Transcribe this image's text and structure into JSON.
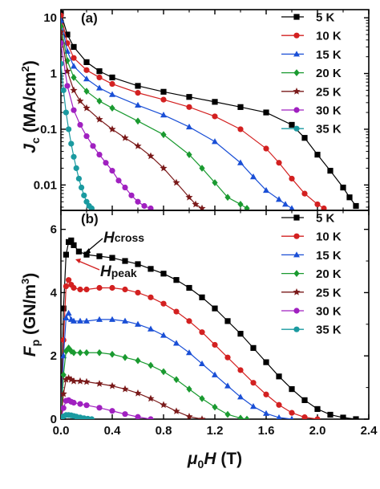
{
  "chart_data": [
    {
      "panel": "(a)",
      "type": "line",
      "y_scale": "log",
      "xlim": [
        0,
        2.4
      ],
      "ylim": [
        0.0035,
        14
      ],
      "y_ticks": [
        0.01,
        0.1,
        1,
        10
      ],
      "y_tick_labels": [
        "0.01",
        "0.1",
        "1",
        "10"
      ],
      "ylabel": {
        "main": "J",
        "sub": "c",
        "rest": " (MA/cm",
        "sup": "2",
        "close": ")"
      },
      "legend_position": "right",
      "series": [
        {
          "name": "5 K",
          "color": "#000000",
          "marker": "square",
          "x": [
            0.0,
            0.05,
            0.1,
            0.2,
            0.3,
            0.4,
            0.6,
            0.8,
            1.0,
            1.2,
            1.4,
            1.6,
            1.8,
            1.9,
            2.0,
            2.1,
            2.2,
            2.25,
            2.3
          ],
          "y": [
            12,
            5.0,
            3.0,
            1.6,
            1.1,
            0.85,
            0.6,
            0.47,
            0.38,
            0.31,
            0.25,
            0.2,
            0.12,
            0.07,
            0.035,
            0.018,
            0.009,
            0.006,
            0.0042
          ]
        },
        {
          "name": "10 K",
          "color": "#d32020",
          "marker": "circle",
          "x": [
            0.0,
            0.05,
            0.1,
            0.2,
            0.3,
            0.4,
            0.6,
            0.8,
            1.0,
            1.2,
            1.4,
            1.6,
            1.7,
            1.8,
            1.9,
            2.0,
            2.05
          ],
          "y": [
            11,
            3.5,
            1.9,
            1.15,
            0.85,
            0.65,
            0.45,
            0.34,
            0.25,
            0.17,
            0.1,
            0.045,
            0.025,
            0.013,
            0.007,
            0.0045,
            0.0038
          ]
        },
        {
          "name": "15 K",
          "color": "#1a4fd6",
          "marker": "triangle",
          "x": [
            0.0,
            0.05,
            0.1,
            0.2,
            0.3,
            0.4,
            0.6,
            0.8,
            1.0,
            1.2,
            1.4,
            1.5,
            1.6,
            1.7,
            1.75,
            1.8
          ],
          "y": [
            9,
            2.5,
            1.35,
            0.8,
            0.55,
            0.42,
            0.27,
            0.18,
            0.11,
            0.06,
            0.025,
            0.014,
            0.008,
            0.0055,
            0.0045,
            0.0038
          ]
        },
        {
          "name": "20 K",
          "color": "#1a9a30",
          "marker": "diamond",
          "x": [
            0.0,
            0.05,
            0.1,
            0.2,
            0.3,
            0.4,
            0.6,
            0.8,
            1.0,
            1.1,
            1.2,
            1.3,
            1.4,
            1.45
          ],
          "y": [
            7,
            1.7,
            0.85,
            0.48,
            0.32,
            0.24,
            0.14,
            0.08,
            0.035,
            0.02,
            0.011,
            0.006,
            0.0045,
            0.0038
          ]
        },
        {
          "name": "25 K",
          "color": "#7a1a1a",
          "marker": "star",
          "x": [
            0.0,
            0.05,
            0.1,
            0.15,
            0.2,
            0.3,
            0.4,
            0.5,
            0.6,
            0.7,
            0.8,
            0.9,
            1.0,
            1.05,
            1.1
          ],
          "y": [
            5.5,
            1.1,
            0.5,
            0.32,
            0.24,
            0.15,
            0.1,
            0.07,
            0.05,
            0.033,
            0.02,
            0.011,
            0.006,
            0.0045,
            0.0038
          ]
        },
        {
          "name": "30 K",
          "color": "#a020c0",
          "marker": "circle",
          "x": [
            0.0,
            0.05,
            0.1,
            0.15,
            0.2,
            0.25,
            0.3,
            0.35,
            0.4,
            0.45,
            0.5,
            0.55,
            0.6,
            0.65,
            0.7
          ],
          "y": [
            3.5,
            0.6,
            0.22,
            0.12,
            0.075,
            0.05,
            0.035,
            0.025,
            0.018,
            0.012,
            0.009,
            0.0065,
            0.005,
            0.0042,
            0.0038
          ]
        },
        {
          "name": "35 K",
          "color": "#1a9aa0",
          "marker": "circle",
          "x": [
            0.0,
            0.02,
            0.04,
            0.06,
            0.08,
            0.1,
            0.12,
            0.14,
            0.16,
            0.18,
            0.2,
            0.22,
            0.24
          ],
          "y": [
            1.5,
            0.5,
            0.2,
            0.1,
            0.055,
            0.032,
            0.02,
            0.013,
            0.009,
            0.0065,
            0.005,
            0.0042,
            0.0038
          ]
        }
      ]
    },
    {
      "panel": "(b)",
      "type": "line",
      "xlim": [
        0,
        2.4
      ],
      "ylim": [
        0,
        6.6
      ],
      "x_ticks": [
        0.0,
        0.4,
        0.8,
        1.2,
        1.6,
        2.0,
        2.4
      ],
      "x_tick_labels": [
        "0.0",
        "0.4",
        "0.8",
        "1.2",
        "1.6",
        "2.0",
        "2.4"
      ],
      "y_ticks": [
        0,
        2,
        4,
        6
      ],
      "y_tick_labels": [
        "0",
        "2",
        "4",
        "6"
      ],
      "ylabel": {
        "main": "F",
        "sub": "p",
        "rest": " (GN/m",
        "sup": "3",
        "close": ")"
      },
      "xlabel": {
        "pre": "μ",
        "sub": "0",
        "main": "H",
        "rest": " (T)"
      },
      "legend_position": "right",
      "annotations": [
        {
          "main": "H",
          "sub": "cross"
        },
        {
          "main": "H",
          "sub": "peak"
        }
      ],
      "series": [
        {
          "name": "5 K",
          "color": "#000000",
          "marker": "square",
          "x": [
            0.0,
            0.02,
            0.04,
            0.06,
            0.08,
            0.1,
            0.14,
            0.2,
            0.3,
            0.4,
            0.5,
            0.6,
            0.7,
            0.8,
            0.9,
            1.0,
            1.1,
            1.2,
            1.3,
            1.4,
            1.5,
            1.6,
            1.7,
            1.8,
            1.9,
            2.0,
            2.1,
            2.2,
            2.3
          ],
          "y": [
            0.0,
            3.5,
            5.2,
            5.6,
            5.65,
            5.5,
            5.3,
            5.2,
            5.15,
            5.1,
            5.0,
            4.9,
            4.75,
            4.6,
            4.4,
            4.15,
            3.85,
            3.5,
            3.1,
            2.7,
            2.25,
            1.8,
            1.35,
            0.95,
            0.6,
            0.32,
            0.14,
            0.05,
            0.0
          ]
        },
        {
          "name": "10 K",
          "color": "#d32020",
          "marker": "circle",
          "x": [
            0.0,
            0.02,
            0.04,
            0.06,
            0.08,
            0.1,
            0.15,
            0.2,
            0.3,
            0.4,
            0.5,
            0.6,
            0.7,
            0.8,
            0.9,
            1.0,
            1.1,
            1.2,
            1.3,
            1.4,
            1.5,
            1.6,
            1.7,
            1.8,
            1.9,
            2.0
          ],
          "y": [
            0.0,
            2.5,
            4.2,
            4.4,
            4.25,
            4.15,
            4.1,
            4.1,
            4.15,
            4.15,
            4.1,
            4.0,
            3.85,
            3.65,
            3.4,
            3.1,
            2.75,
            2.35,
            1.95,
            1.55,
            1.15,
            0.78,
            0.45,
            0.2,
            0.06,
            0.0
          ]
        },
        {
          "name": "15 K",
          "color": "#1a4fd6",
          "marker": "triangle",
          "x": [
            0.0,
            0.02,
            0.04,
            0.06,
            0.08,
            0.1,
            0.15,
            0.2,
            0.3,
            0.4,
            0.5,
            0.6,
            0.7,
            0.8,
            0.9,
            1.0,
            1.1,
            1.2,
            1.3,
            1.4,
            1.5,
            1.6,
            1.7,
            1.8
          ],
          "y": [
            0.0,
            2.0,
            3.2,
            3.35,
            3.15,
            3.1,
            3.1,
            3.1,
            3.15,
            3.15,
            3.1,
            3.0,
            2.85,
            2.65,
            2.4,
            2.1,
            1.75,
            1.4,
            1.05,
            0.7,
            0.4,
            0.18,
            0.05,
            0.0
          ]
        },
        {
          "name": "20 K",
          "color": "#1a9a30",
          "marker": "diamond",
          "x": [
            0.0,
            0.02,
            0.04,
            0.06,
            0.08,
            0.1,
            0.15,
            0.2,
            0.3,
            0.4,
            0.5,
            0.6,
            0.7,
            0.8,
            0.9,
            1.0,
            1.1,
            1.2,
            1.3,
            1.4,
            1.45
          ],
          "y": [
            0.0,
            1.4,
            2.15,
            2.25,
            2.15,
            2.1,
            2.1,
            2.1,
            2.1,
            2.05,
            1.95,
            1.85,
            1.7,
            1.5,
            1.25,
            0.95,
            0.65,
            0.38,
            0.15,
            0.03,
            0.0
          ]
        },
        {
          "name": "25 K",
          "color": "#7a1a1a",
          "marker": "star",
          "x": [
            0.0,
            0.02,
            0.04,
            0.06,
            0.08,
            0.1,
            0.15,
            0.2,
            0.3,
            0.4,
            0.5,
            0.6,
            0.7,
            0.8,
            0.9,
            1.0,
            1.1
          ],
          "y": [
            0.0,
            0.8,
            1.25,
            1.3,
            1.25,
            1.2,
            1.2,
            1.18,
            1.12,
            1.05,
            0.95,
            0.82,
            0.65,
            0.45,
            0.25,
            0.08,
            0.0
          ]
        },
        {
          "name": "30 K",
          "color": "#a020c0",
          "marker": "circle",
          "x": [
            0.0,
            0.02,
            0.04,
            0.06,
            0.08,
            0.1,
            0.15,
            0.2,
            0.3,
            0.4,
            0.5,
            0.6,
            0.7
          ],
          "y": [
            0.0,
            0.35,
            0.58,
            0.6,
            0.55,
            0.52,
            0.48,
            0.44,
            0.36,
            0.26,
            0.16,
            0.07,
            0.0
          ]
        },
        {
          "name": "35 K",
          "color": "#1a9aa0",
          "marker": "circle",
          "x": [
            0.0,
            0.02,
            0.04,
            0.06,
            0.08,
            0.1,
            0.12,
            0.15,
            0.18,
            0.21,
            0.24
          ],
          "y": [
            0.0,
            0.09,
            0.13,
            0.13,
            0.12,
            0.1,
            0.08,
            0.055,
            0.03,
            0.012,
            0.0
          ]
        }
      ]
    }
  ]
}
